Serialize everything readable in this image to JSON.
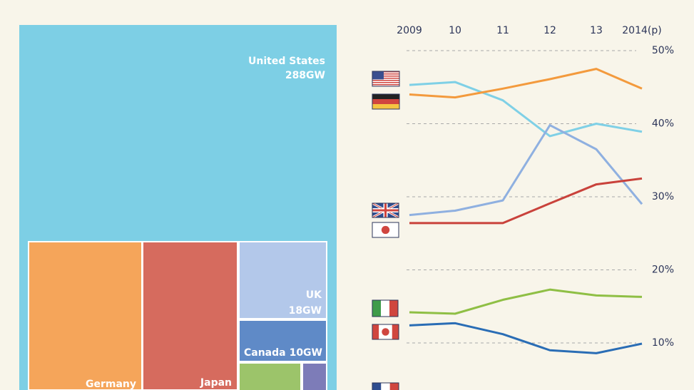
{
  "chart_data": [
    {
      "type": "treemap",
      "labels": [
        "United States",
        "Germany",
        "Japan",
        "UK",
        "Canada"
      ],
      "values": [
        288,
        null,
        null,
        18,
        10
      ],
      "value_labels": [
        "288GW",
        null,
        null,
        "18GW",
        "10GW"
      ],
      "colors": [
        "#7dcfe5",
        "#f5a55a",
        "#d66b5e",
        "#b3c8ea",
        "#5f8ac7"
      ]
    },
    {
      "type": "line",
      "categories": [
        "2009",
        "10",
        "11",
        "12",
        "13",
        "2014(p)"
      ],
      "series": [
        {
          "color": "#7fd0e6",
          "values": [
            45.3,
            45.7,
            43.2,
            38.3,
            40.0,
            38.9
          ]
        },
        {
          "color": "#f39a3d",
          "values": [
            44.0,
            43.6,
            44.8,
            46.1,
            47.5,
            44.8
          ]
        },
        {
          "color": "#8fb0e0",
          "values": [
            27.5,
            28.1,
            29.5,
            39.8,
            36.5,
            29.0
          ]
        },
        {
          "color": "#c9423b",
          "values": [
            26.4,
            26.4,
            26.4,
            29.1,
            31.7,
            32.5
          ]
        },
        {
          "color": "#8fbf45",
          "values": [
            14.2,
            14.0,
            15.9,
            17.3,
            16.5,
            16.3
          ]
        },
        {
          "color": "#2a6db5",
          "values": [
            12.4,
            12.7,
            11.2,
            9.0,
            8.6,
            9.9
          ]
        }
      ],
      "ylim": [
        4,
        52
      ],
      "yticks": [
        {
          "value": 50,
          "label": "50%"
        },
        {
          "value": 40,
          "label": "40%"
        },
        {
          "value": 30,
          "label": "30%"
        },
        {
          "value": 20,
          "label": "20%"
        },
        {
          "value": 10,
          "label": "10%"
        }
      ],
      "grid": true
    }
  ]
}
